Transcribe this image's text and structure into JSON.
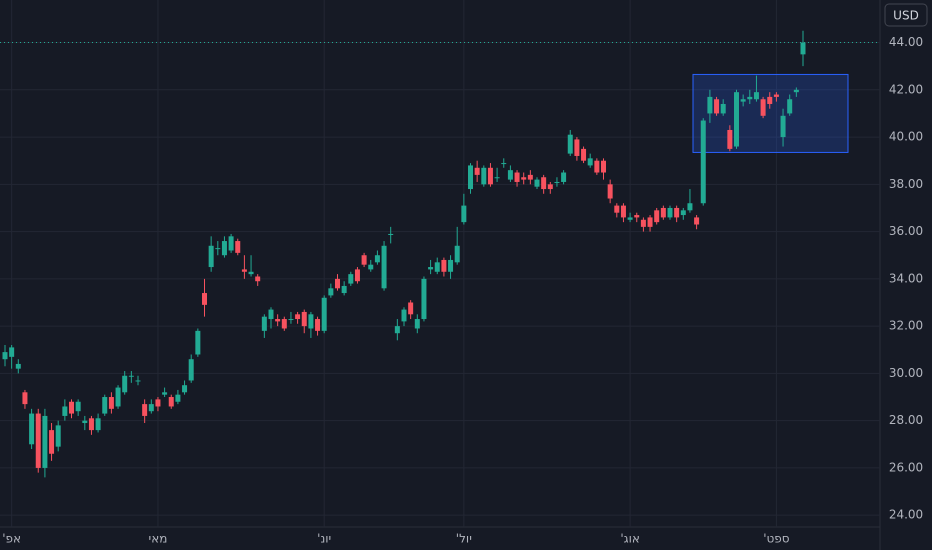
{
  "chart_data": {
    "type": "candlestick",
    "currency": "USD",
    "up_color": "#22ab94",
    "down_color": "#f7525f",
    "grid": true,
    "ylim": [
      23.5,
      45.8
    ],
    "yticks": [
      {
        "value": 24,
        "label": "24.00"
      },
      {
        "value": 26,
        "label": "26.00"
      },
      {
        "value": 28,
        "label": "28.00"
      },
      {
        "value": 30,
        "label": "30.00"
      },
      {
        "value": 32,
        "label": "32.00"
      },
      {
        "value": 34,
        "label": "34.00"
      },
      {
        "value": 36,
        "label": "36.00"
      },
      {
        "value": 38,
        "label": "38.00"
      },
      {
        "value": 40,
        "label": "40.00"
      },
      {
        "value": 42,
        "label": "42.00"
      },
      {
        "value": 44,
        "label": "44.00"
      }
    ],
    "highlight_range": [
      39.35,
      42.65
    ],
    "categories": [
      null,
      "'אפ",
      null,
      null,
      null,
      null,
      null,
      null,
      null,
      null,
      null,
      null,
      null,
      null,
      null,
      null,
      null,
      null,
      null,
      null,
      null,
      null,
      null,
      "מאי",
      null,
      null,
      null,
      null,
      null,
      null,
      null,
      null,
      null,
      null,
      null,
      null,
      null,
      null,
      null,
      null,
      null,
      null,
      null,
      null,
      null,
      null,
      null,
      null,
      "'יונ",
      null,
      null,
      null,
      null,
      null,
      null,
      null,
      null,
      null,
      null,
      null,
      null,
      null,
      null,
      null,
      null,
      null,
      null,
      null,
      null,
      "'יול",
      null,
      null,
      null,
      null,
      null,
      null,
      null,
      null,
      null,
      null,
      null,
      null,
      null,
      null,
      null,
      null,
      null,
      null,
      null,
      null,
      null,
      null,
      null,
      null,
      "'אוג",
      null,
      null,
      null,
      null,
      null,
      null,
      null,
      null,
      null,
      null,
      null,
      null,
      null,
      null,
      null,
      null,
      null,
      null,
      null,
      null,
      null,
      "'ספט",
      null,
      null,
      null,
      null
    ],
    "open": [
      30.6,
      30.7,
      30.2,
      29.2,
      27.0,
      28.3,
      26.0,
      27.6,
      26.9,
      28.2,
      28.8,
      28.4,
      27.9,
      28.1,
      27.6,
      28.3,
      29.0,
      28.6,
      29.2,
      29.9,
      29.7,
      28.7,
      28.4,
      28.9,
      29.1,
      29.0,
      28.8,
      29.2,
      29.7,
      30.8,
      33.4,
      34.5,
      35.3,
      35.0,
      35.2,
      35.6,
      34.4,
      34.2,
      34.1,
      31.8,
      32.3,
      32.3,
      32.3,
      32.3,
      32.5,
      32.6,
      31.9,
      32.3,
      31.8,
      33.3,
      34.0,
      33.4,
      33.8,
      34.4,
      35.0,
      34.4,
      34.7,
      33.6,
      35.9,
      31.7,
      32.2,
      33.0,
      31.9,
      32.3,
      34.4,
      34.3,
      34.8,
      34.3,
      34.7,
      36.4,
      37.8,
      38.7,
      38.0,
      38.7,
      38.3,
      38.9,
      38.2,
      38.5,
      38.3,
      38.4,
      37.9,
      38.3,
      38.0,
      38.1,
      38.1,
      39.3,
      39.9,
      39.5,
      38.8,
      39.0,
      39.0,
      38.0,
      37.1,
      37.1,
      36.5,
      36.7,
      36.5,
      36.6,
      36.9,
      37.0,
      36.6,
      37.0,
      36.7,
      36.9,
      36.6,
      37.2,
      41.0,
      41.6,
      41.0,
      40.3,
      39.6,
      41.5,
      41.6,
      41.6,
      41.6,
      41.7,
      41.8,
      40.0,
      41.0,
      41.9,
      43.5
    ],
    "high": [
      31.2,
      31.2,
      30.6,
      29.3,
      28.5,
      28.5,
      28.5,
      27.9,
      28.0,
      28.9,
      28.9,
      28.9,
      28.2,
      28.2,
      28.3,
      29.1,
      29.2,
      29.5,
      30.1,
      30.1,
      29.9,
      28.9,
      28.9,
      29.0,
      29.4,
      29.1,
      29.3,
      29.7,
      30.8,
      31.9,
      34.0,
      35.8,
      35.6,
      35.8,
      35.9,
      35.7,
      35.0,
      35.0,
      34.2,
      32.5,
      32.8,
      32.5,
      32.4,
      32.6,
      32.6,
      32.7,
      32.6,
      32.4,
      33.3,
      33.8,
      34.2,
      33.9,
      34.3,
      34.5,
      35.1,
      34.8,
      35.2,
      35.6,
      36.2,
      32.3,
      32.8,
      33.1,
      32.5,
      34.1,
      34.8,
      34.9,
      34.9,
      35.0,
      36.2,
      37.6,
      38.9,
      39.0,
      38.8,
      38.9,
      38.7,
      39.1,
      38.8,
      38.6,
      38.5,
      38.6,
      38.3,
      38.4,
      38.1,
      38.3,
      38.6,
      40.3,
      40.0,
      39.6,
      39.3,
      39.1,
      39.1,
      38.2,
      37.2,
      37.2,
      36.8,
      36.8,
      36.6,
      36.7,
      37.0,
      37.1,
      37.1,
      37.1,
      37.0,
      37.8,
      36.7,
      40.8,
      42.0,
      41.7,
      41.6,
      40.5,
      42.0,
      41.8,
      42.0,
      42.6,
      41.7,
      41.9,
      41.9,
      41.2,
      41.8,
      42.1,
      44.5
    ],
    "low": [
      30.3,
      30.2,
      30.0,
      28.5,
      26.8,
      25.8,
      25.6,
      26.3,
      26.7,
      28.0,
      28.1,
      28.2,
      27.6,
      27.4,
      27.5,
      28.2,
      28.3,
      28.5,
      29.1,
      29.6,
      29.5,
      27.9,
      28.3,
      28.4,
      29.0,
      28.5,
      28.7,
      29.1,
      29.6,
      30.7,
      32.4,
      34.3,
      35.0,
      34.9,
      35.1,
      35.0,
      34.0,
      34.1,
      33.7,
      31.5,
      31.9,
      32.0,
      31.8,
      32.1,
      32.1,
      31.7,
      31.5,
      31.6,
      31.7,
      33.2,
      33.5,
      33.3,
      33.7,
      33.8,
      34.5,
      34.3,
      34.6,
      33.5,
      35.5,
      31.4,
      32.0,
      32.3,
      31.7,
      32.2,
      34.2,
      34.2,
      34.1,
      34.0,
      34.6,
      36.3,
      37.6,
      38.1,
      37.9,
      37.9,
      38.1,
      38.7,
      38.1,
      37.9,
      38.0,
      38.0,
      37.8,
      37.6,
      37.6,
      37.9,
      38.0,
      39.2,
      39.0,
      38.9,
      38.7,
      38.4,
      38.2,
      37.2,
      36.6,
      36.4,
      36.4,
      36.4,
      36.0,
      36.0,
      36.3,
      36.5,
      36.5,
      36.4,
      36.5,
      36.8,
      36.1,
      37.1,
      40.6,
      40.9,
      40.9,
      39.4,
      39.5,
      41.3,
      41.4,
      41.5,
      40.8,
      41.2,
      41.5,
      39.6,
      40.9,
      41.7,
      43.0
    ],
    "close": [
      30.9,
      31.1,
      30.4,
      28.7,
      28.3,
      26.0,
      28.2,
      26.6,
      27.8,
      28.6,
      28.3,
      28.8,
      28.0,
      27.6,
      28.1,
      29.0,
      28.5,
      29.4,
      29.9,
      29.9,
      29.7,
      28.2,
      28.7,
      28.6,
      29.2,
      28.6,
      29.1,
      29.5,
      30.6,
      31.8,
      32.9,
      35.4,
      35.3,
      35.6,
      35.8,
      35.1,
      34.3,
      34.3,
      33.9,
      32.4,
      32.7,
      32.2,
      31.9,
      32.3,
      32.3,
      32.0,
      32.5,
      31.8,
      33.2,
      33.6,
      33.6,
      33.7,
      34.2,
      33.9,
      34.6,
      34.6,
      35.0,
      35.4,
      35.9,
      32.0,
      32.7,
      32.5,
      32.3,
      34.0,
      34.5,
      34.7,
      34.3,
      34.8,
      35.4,
      37.1,
      38.8,
      38.4,
      38.7,
      38.0,
      38.3,
      38.9,
      38.6,
      38.1,
      38.2,
      38.2,
      38.2,
      37.8,
      37.8,
      38.1,
      38.5,
      40.1,
      39.2,
      39.0,
      39.1,
      38.5,
      38.5,
      37.4,
      36.8,
      36.6,
      36.6,
      36.6,
      36.2,
      36.2,
      36.4,
      36.6,
      37.0,
      36.6,
      36.9,
      37.2,
      36.3,
      40.7,
      41.7,
      41.0,
      41.4,
      39.5,
      41.9,
      41.6,
      41.7,
      41.9,
      40.9,
      41.4,
      41.7,
      40.9,
      41.6,
      42.0,
      44.0
    ]
  }
}
